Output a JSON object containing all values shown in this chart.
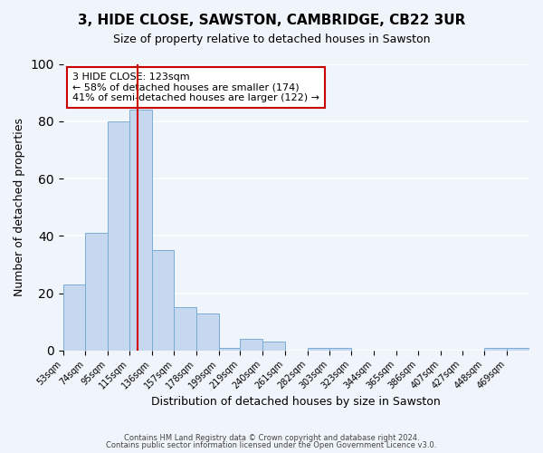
{
  "title": "3, HIDE CLOSE, SAWSTON, CAMBRIDGE, CB22 3UR",
  "subtitle": "Size of property relative to detached houses in Sawston",
  "xlabel": "Distribution of detached houses by size in Sawston",
  "ylabel": "Number of detached properties",
  "bar_color": "#c5d8f0",
  "bar_edge_color": "#7aadd4",
  "background_color": "#f0f4fb",
  "grid_color": "#ffffff",
  "bin_labels": [
    "53sqm",
    "74sqm",
    "95sqm",
    "115sqm",
    "136sqm",
    "157sqm",
    "178sqm",
    "199sqm",
    "219sqm",
    "240sqm",
    "261sqm",
    "282sqm",
    "303sqm",
    "323sqm",
    "344sqm",
    "365sqm",
    "386sqm",
    "407sqm",
    "427sqm",
    "448sqm",
    "469sqm"
  ],
  "bar_heights": [
    23,
    41,
    80,
    84,
    35,
    15,
    13,
    1,
    4,
    3,
    0,
    1,
    1,
    0,
    0,
    0,
    0,
    0,
    0,
    1,
    1
  ],
  "vline_x": 123,
  "vline_color": "#cc0000",
  "bin_edges": [
    53,
    74,
    95,
    115,
    136,
    157,
    178,
    199,
    219,
    240,
    261,
    282,
    303,
    323,
    344,
    365,
    386,
    407,
    427,
    448,
    469,
    490
  ],
  "annotation_text": "3 HIDE CLOSE: 123sqm\n← 58% of detached houses are smaller (174)\n41% of semi-detached houses are larger (122) →",
  "annotation_box_color": "#ffffff",
  "annotation_box_edge": "#cc0000",
  "ylim": [
    0,
    100
  ],
  "yticks": [
    0,
    20,
    40,
    60,
    80,
    100
  ],
  "footer1": "Contains HM Land Registry data © Crown copyright and database right 2024.",
  "footer2": "Contains public sector information licensed under the Open Government Licence v3.0."
}
